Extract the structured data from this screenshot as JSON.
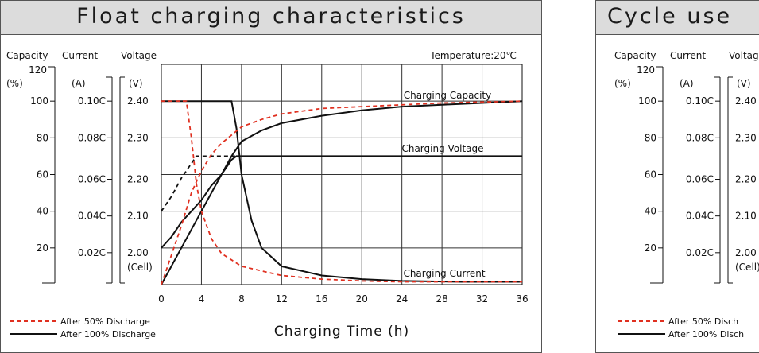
{
  "chart_data": [
    {
      "type": "line",
      "title": "Float charging characteristics",
      "xlabel": "Charging Time (h)",
      "x_ticks": [
        0,
        4,
        8,
        12,
        16,
        20,
        24,
        28,
        32,
        36
      ],
      "xlim": [
        0,
        36
      ],
      "axes": {
        "capacity": {
          "label": "Capacity",
          "unit": "(%)",
          "ticks": [
            120,
            100,
            80,
            60,
            40,
            20
          ],
          "tick_labels": [
            "120",
            "100",
            "80",
            "60",
            "40",
            "20"
          ]
        },
        "current": {
          "label": "Current",
          "unit": "(A)",
          "tick_labels": [
            "0.10C",
            "0.08C",
            "0.06C",
            "0.04C",
            "0.02C"
          ]
        },
        "voltage": {
          "label": "Voltage",
          "unit": "(V)",
          "tick_labels": [
            "2.40",
            "2.30",
            "2.20",
            "2.10",
            "2.00"
          ],
          "cell_label": "(Cell)"
        }
      },
      "temperature_label": "Temperature:20℃",
      "grid": true,
      "annotations": [
        "Charging Capacity",
        "Charging Voltage",
        "Charging Current"
      ],
      "legend": [
        {
          "name": "After 50% Discharge",
          "style": "dashed",
          "color": "#e03020"
        },
        {
          "name": "After 100% Discharge",
          "style": "solid",
          "color": "#111111"
        }
      ],
      "series": [
        {
          "group": "After 100% Discharge",
          "quantity": "Charging Voltage",
          "unit": "V",
          "x": [
            0,
            1,
            2,
            3,
            4,
            5,
            6,
            7,
            7.5,
            8,
            36
          ],
          "y": [
            2.0,
            2.03,
            2.07,
            2.1,
            2.13,
            2.17,
            2.2,
            2.24,
            2.25,
            2.25,
            2.25
          ]
        },
        {
          "group": "After 100% Discharge",
          "quantity": "Charging Current",
          "unit": "C",
          "x": [
            0,
            7,
            7.5,
            8,
            9,
            10,
            12,
            16,
            20,
            24,
            30,
            36
          ],
          "y": [
            0.1,
            0.1,
            0.085,
            0.06,
            0.035,
            0.02,
            0.01,
            0.005,
            0.003,
            0.002,
            0.0015,
            0.0015
          ]
        },
        {
          "group": "After 100% Discharge",
          "quantity": "Charging Capacity",
          "unit": "%",
          "x": [
            0,
            2,
            4,
            6,
            7,
            8,
            10,
            12,
            16,
            20,
            24,
            28,
            32,
            36
          ],
          "y": [
            0,
            20,
            40,
            60,
            70,
            78,
            84,
            88,
            92,
            95,
            97,
            98,
            99,
            100
          ]
        },
        {
          "group": "After 50% Discharge",
          "quantity": "Charging Voltage",
          "unit": "V",
          "x": [
            0,
            1,
            2,
            3,
            3.5,
            36
          ],
          "y": [
            2.1,
            2.14,
            2.19,
            2.23,
            2.25,
            2.25
          ]
        },
        {
          "group": "After 50% Discharge",
          "quantity": "Charging Current",
          "unit": "C",
          "x": [
            0,
            2.5,
            3,
            3.5,
            4,
            5,
            6,
            8,
            12,
            16,
            20,
            24,
            36
          ],
          "y": [
            0.1,
            0.1,
            0.08,
            0.055,
            0.04,
            0.025,
            0.017,
            0.01,
            0.005,
            0.003,
            0.002,
            0.0015,
            0.0015
          ]
        },
        {
          "group": "After 50% Discharge",
          "quantity": "Charging Capacity",
          "unit": "%",
          "x": [
            0,
            1,
            2,
            3,
            4,
            5,
            6,
            8,
            10,
            12,
            16,
            20,
            24,
            28,
            32,
            36
          ],
          "y": [
            0,
            16,
            32,
            50,
            62,
            71,
            77,
            86,
            90,
            93,
            96,
            97,
            98,
            99,
            99.5,
            100
          ]
        }
      ]
    },
    {
      "type": "line",
      "title": "Cycle use",
      "axes": {
        "capacity": {
          "label": "Capacity",
          "unit": "(%)",
          "tick_labels": [
            "120",
            "100",
            "80",
            "60",
            "40",
            "20"
          ]
        },
        "current": {
          "label": "Current",
          "unit": "(A)",
          "tick_labels": [
            "0.10C",
            "0.08C",
            "0.06C",
            "0.04C",
            "0.02C"
          ]
        },
        "voltage": {
          "label": "Voltag",
          "unit": "(V)",
          "tick_labels": [
            "2.40",
            "2.30",
            "2.20",
            "2.10",
            "2.00"
          ],
          "cell_label": "(Cell)"
        }
      },
      "legend": [
        {
          "name": "After 50% Disch",
          "style": "dashed",
          "color": "#e03020"
        },
        {
          "name": "After 100% Disch",
          "style": "solid",
          "color": "#111111"
        }
      ]
    }
  ]
}
